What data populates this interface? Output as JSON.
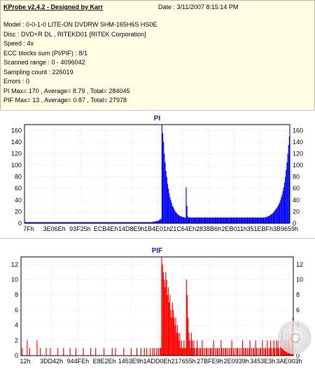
{
  "header": {
    "title": "KProbe v2.4.2 - Designed by Karr",
    "date": "Date : 3/11/2007 8:15:14 PM"
  },
  "info_lines": [
    "Model : 0-0-1-0 LITE-ON DVDRW SHM-165H6S HS0E",
    "Disc : DVD+R DL , RITEKD01 [RITEK Corporation]",
    "Speed : 4x",
    "ECC blocks sum (PI/PIF) : 8/1",
    "Scanned range : 0 - 4096042",
    "Sampling count : 226019",
    "Errors : 0",
    "PI Max= 170 , Average= 8.79 , Total= 284045",
    "PIF Max= 13 , Average= 0.87 , Total= 27978"
  ],
  "chart_data": [
    {
      "type": "bar",
      "title": "PI",
      "color": "#0000ff",
      "ylim": [
        0,
        170
      ],
      "y_ticks": [
        0,
        20,
        40,
        60,
        80,
        100,
        120,
        140,
        160
      ],
      "x_tick_labels": [
        "7Fh",
        "3E06Eh",
        "93F25h",
        "ECB4Eh",
        "14D8E9h",
        "1B4E01h",
        "21C64Eh",
        "2838B6h",
        "2EB011h",
        "351EBFh",
        "3B9659h"
      ],
      "grid": true,
      "series": [
        {
          "values": [
            2,
            2,
            2,
            2,
            2,
            2,
            2,
            2,
            2,
            2,
            2,
            2,
            2,
            2,
            2,
            2,
            2,
            2,
            2,
            2,
            2,
            2,
            2,
            2,
            2,
            2,
            2,
            2,
            2,
            2,
            2,
            2,
            2,
            2,
            2,
            2,
            2,
            2,
            2,
            2,
            2,
            2,
            2,
            2,
            2,
            2,
            2,
            2,
            2,
            2,
            2,
            2,
            2,
            2,
            2,
            2,
            2,
            2,
            2,
            2,
            2,
            2,
            2,
            2,
            2,
            2,
            2,
            2,
            2,
            2,
            2,
            2,
            2,
            2,
            2,
            2,
            2,
            2,
            2,
            2,
            2,
            2,
            2,
            2,
            2,
            2,
            2,
            2,
            2,
            2,
            2,
            2,
            2,
            2,
            2,
            2,
            2,
            2,
            2,
            2,
            2,
            2,
            2,
            2,
            2,
            2,
            2,
            2,
            2,
            2,
            2,
            2,
            2,
            2,
            2,
            2,
            2,
            2,
            2,
            2,
            2,
            2,
            2,
            2,
            2,
            2,
            2,
            2,
            2,
            2,
            2,
            2,
            2,
            2,
            2,
            2,
            2,
            2,
            2,
            2,
            2,
            2,
            2,
            2,
            2,
            2,
            2,
            2,
            2,
            2,
            2,
            2,
            2,
            2,
            2,
            2,
            2,
            2,
            2,
            3,
            3,
            3,
            3,
            4,
            4,
            4,
            5,
            6,
            7,
            8,
            170,
            155,
            140,
            120,
            105,
            90,
            80,
            68,
            60,
            52,
            45,
            40,
            35,
            30,
            28,
            25,
            22,
            20,
            18,
            16,
            15,
            14,
            13,
            12,
            12,
            11,
            11,
            10,
            10,
            10,
            62,
            30,
            12,
            10,
            10,
            10,
            10,
            10,
            10,
            10,
            10,
            10,
            10,
            10,
            10,
            10,
            10,
            10,
            10,
            10,
            10,
            10,
            10,
            10,
            10,
            10,
            10,
            10,
            10,
            10,
            10,
            10,
            10,
            10,
            10,
            10,
            10,
            10,
            10,
            10,
            10,
            10,
            10,
            10,
            10,
            10,
            10,
            10,
            10,
            10,
            10,
            10,
            10,
            10,
            10,
            10,
            10,
            10,
            10,
            10,
            10,
            10,
            10,
            10,
            10,
            10,
            10,
            10,
            10,
            10,
            10,
            10,
            10,
            10,
            10,
            10,
            10,
            10,
            10,
            10,
            10,
            10,
            10,
            10,
            10,
            10,
            10,
            10,
            10,
            10,
            10,
            10,
            10,
            10,
            10,
            10,
            10,
            10,
            10,
            11,
            11,
            12,
            12,
            13,
            14,
            15,
            16,
            17,
            18,
            20,
            22,
            24,
            26,
            28,
            30,
            33,
            36,
            40,
            45,
            50,
            56,
            62,
            70,
            80,
            92,
            105,
            120,
            135,
            150
          ]
        }
      ]
    },
    {
      "type": "bar",
      "title": "PIF",
      "color": "#ff0000",
      "ylim": [
        0,
        13
      ],
      "y_ticks": [
        0,
        2,
        4,
        6,
        8,
        10,
        12
      ],
      "x_tick_labels": [
        "12h",
        "3DD42h",
        "944FEh",
        "E8E2Eh",
        "1453E9h",
        "1ADD0Eh",
        "217655h",
        "27BFE9h",
        "2E0939h",
        "3453E3h",
        "3AE003h"
      ],
      "grid": true,
      "series": [
        {
          "values": [
            0,
            1,
            0,
            0,
            0,
            0,
            0,
            2,
            0,
            0,
            1,
            0,
            0,
            0,
            0,
            0,
            0,
            0,
            0,
            2,
            0,
            0,
            0,
            1,
            0,
            0,
            0,
            0,
            0,
            0,
            1,
            0,
            0,
            0,
            0,
            1,
            0,
            0,
            0,
            0,
            0,
            0,
            0,
            0,
            1,
            0,
            0,
            0,
            0,
            0,
            0,
            1,
            0,
            0,
            0,
            0,
            0,
            0,
            0,
            1,
            0,
            0,
            0,
            0,
            0,
            0,
            1,
            0,
            0,
            0,
            0,
            0,
            0,
            0,
            0,
            1,
            0,
            0,
            0,
            0,
            0,
            0,
            0,
            0,
            1,
            0,
            0,
            0,
            0,
            0,
            1,
            0,
            0,
            0,
            0,
            0,
            0,
            0,
            0,
            0,
            1,
            0,
            0,
            0,
            0,
            0,
            0,
            0,
            0,
            0,
            1,
            0,
            0,
            0,
            1,
            0,
            0,
            0,
            0,
            0,
            0,
            0,
            0,
            0,
            1,
            0,
            0,
            0,
            0,
            0,
            0,
            0,
            0,
            1,
            0,
            0,
            0,
            0,
            0,
            0,
            1,
            0,
            0,
            0,
            0,
            1,
            0,
            0,
            0,
            1,
            0,
            0,
            1,
            0,
            0,
            0,
            1,
            0,
            0,
            1,
            0,
            1,
            0,
            0,
            1,
            0,
            1,
            0,
            1,
            1,
            13,
            12,
            11,
            10,
            9,
            11,
            10,
            8,
            9,
            7,
            8,
            6,
            5,
            7,
            6,
            5,
            4,
            5,
            3,
            4,
            3,
            2,
            3,
            1,
            2,
            1,
            1,
            2,
            1,
            1,
            10,
            8,
            5,
            3,
            2,
            1,
            3,
            2,
            1,
            2,
            1,
            0,
            1,
            2,
            1,
            0,
            1,
            1,
            0,
            2,
            1,
            0,
            1,
            0,
            1,
            1,
            0,
            1,
            0,
            1,
            1,
            0,
            1,
            2,
            0,
            1,
            0,
            1,
            1,
            0,
            1,
            0,
            2,
            1,
            0,
            1,
            0,
            1,
            1,
            0,
            1,
            0,
            1,
            0,
            1,
            2,
            0,
            1,
            0,
            1,
            0,
            1,
            1,
            0,
            1,
            0,
            1,
            0,
            2,
            1,
            0,
            1,
            1,
            0,
            1,
            0,
            1,
            2,
            0,
            1,
            0,
            1,
            1,
            0,
            2,
            1,
            0,
            1,
            0,
            1,
            1,
            0,
            2,
            1,
            0,
            1,
            1,
            0,
            2,
            1,
            0,
            1,
            2,
            1,
            0,
            1,
            2,
            1,
            0,
            2,
            1,
            2,
            1,
            0,
            2,
            1,
            3,
            1,
            2,
            1,
            2,
            3,
            1,
            2,
            3,
            2,
            1,
            3,
            4,
            5
          ]
        }
      ]
    }
  ]
}
